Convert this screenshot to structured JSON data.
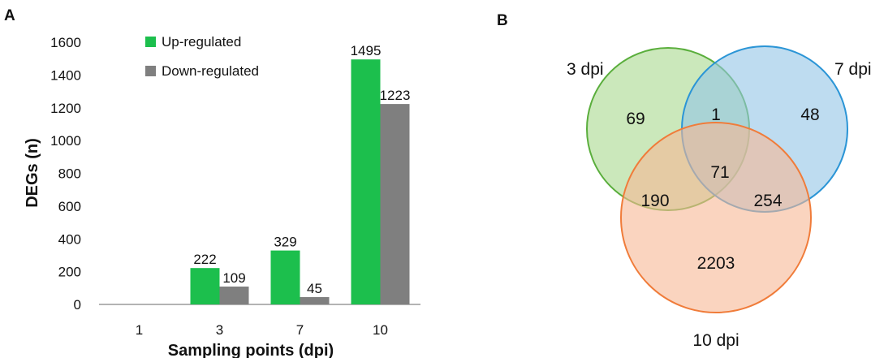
{
  "panels": {
    "a": "A",
    "b": "B"
  },
  "chart_data": [
    {
      "type": "bar",
      "categories": [
        "1",
        "3",
        "7",
        "10"
      ],
      "series": [
        {
          "name": "Up-regulated",
          "color": "#1cbf4d",
          "values": [
            0,
            222,
            329,
            1495
          ]
        },
        {
          "name": "Down-regulated",
          "color": "#7f7f7f",
          "values": [
            0,
            109,
            45,
            1223
          ]
        }
      ],
      "data_labels": [
        [
          "",
          "222",
          "329",
          "1495"
        ],
        [
          "",
          "109",
          "45",
          "1223"
        ]
      ],
      "xlabel": "Sampling points (dpi)",
      "ylabel": "DEGs (n)",
      "ylim": [
        0,
        1600
      ],
      "yticks": [
        0,
        200,
        400,
        600,
        800,
        1000,
        1200,
        1400,
        1600
      ],
      "grid": false,
      "legend": "top-left"
    },
    {
      "type": "venn",
      "sets": [
        {
          "name": "3 dpi",
          "stroke": "#5aae3c",
          "fill": "#a9d88e"
        },
        {
          "name": "7 dpi",
          "stroke": "#2b95d6",
          "fill": "#92c5e6"
        },
        {
          "name": "10 dpi",
          "stroke": "#f07c3a",
          "fill": "#f6b794"
        }
      ],
      "regions": {
        "only_3": "69",
        "only_7": "48",
        "only_10": "2203",
        "3_7": "1",
        "3_10": "190",
        "7_10": "254",
        "all": "71"
      }
    }
  ]
}
